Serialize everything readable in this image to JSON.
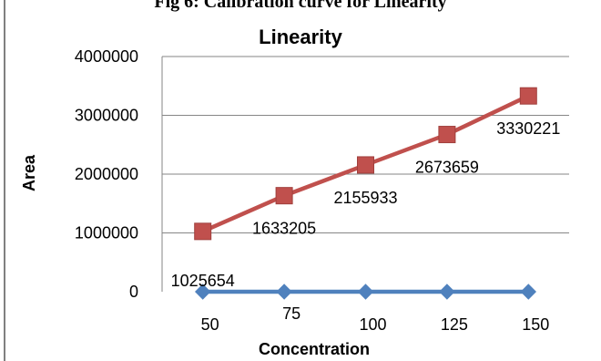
{
  "caption": "Fig 6: Calibration curve for Linearity",
  "chart_data": {
    "type": "line",
    "title": "Linearity",
    "xlabel": "Concentration",
    "ylabel": "Area",
    "categories": [
      "50",
      "75",
      "100",
      "125",
      "150"
    ],
    "ylim": [
      0,
      4000000
    ],
    "yticks": [
      0,
      1000000,
      2000000,
      3000000,
      4000000
    ],
    "ytick_labels": [
      "0",
      "1000000",
      "2000000",
      "3000000",
      "4000000"
    ],
    "grid": "horizontal",
    "legend": "none",
    "series": [
      {
        "values": [
          0,
          0,
          0,
          0,
          0
        ],
        "color": "#4f81bd",
        "marker": "diamond",
        "data_labels": []
      },
      {
        "values": [
          1025654,
          1633205,
          2155933,
          2673659,
          3330221
        ],
        "color": "#c0504d",
        "marker": "square",
        "data_labels": [
          "1025654",
          "1633205",
          "2155933",
          "2673659",
          "3330221"
        ]
      }
    ]
  }
}
